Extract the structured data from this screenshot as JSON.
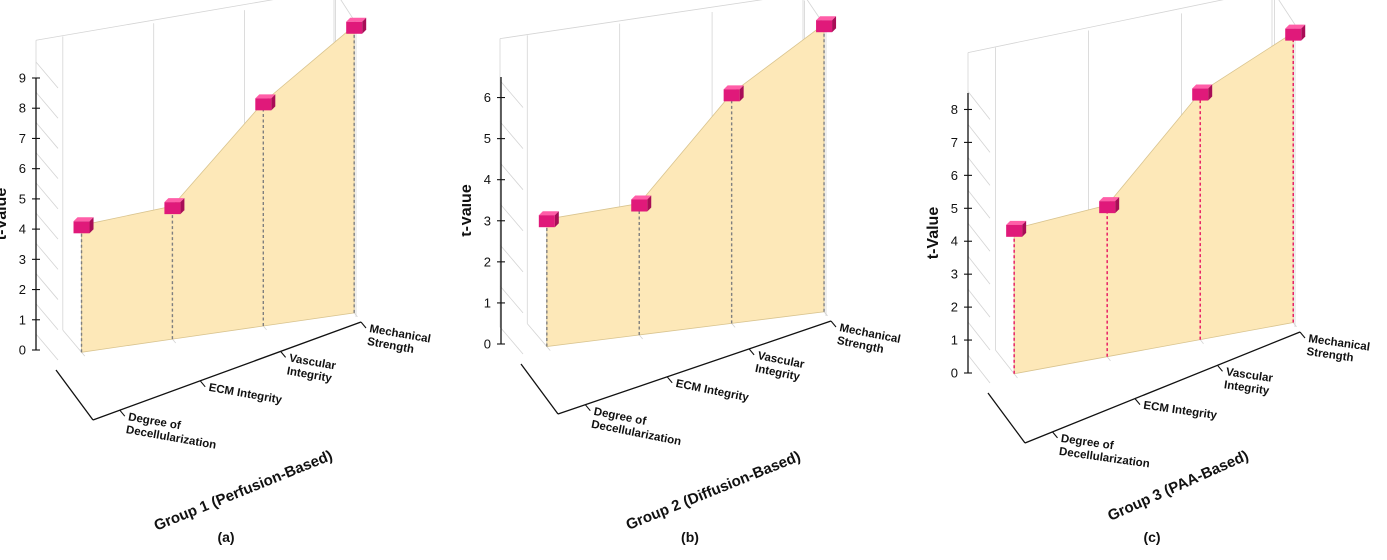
{
  "colors": {
    "area_fill": "#fde8b8",
    "marker_face": "#e0197a",
    "marker_top": "#ff5ea8",
    "marker_side": "#a80d57",
    "drop_gray": "#7f7f7f",
    "drop_red": "#e6105f"
  },
  "chart_data": [
    {
      "type": "area",
      "panel": "(a)",
      "title": "",
      "xlabel": "Group 1 (Perfusion-Based)",
      "ylabel": "t-Value",
      "categories": [
        "Degree of Decellularization",
        "ECM Integrity",
        "Vascular Integrity",
        "Mechanical Strength"
      ],
      "values": [
        4.2,
        4.4,
        7.4,
        9.5
      ],
      "ylim": [
        0,
        9
      ],
      "yticks": [
        0,
        1,
        2,
        3,
        4,
        5,
        6,
        7,
        8,
        9
      ],
      "drop_line_color": "gray",
      "grid": true
    },
    {
      "type": "area",
      "panel": "(b)",
      "title": "",
      "xlabel": "Group 2 (Diffusion-Based)",
      "ylabel": "t-Value",
      "categories": [
        "Degree of Decellularization",
        "ECM Integrity",
        "Vascular Integrity",
        "Mechanical Strength"
      ],
      "values": [
        3.1,
        3.2,
        5.6,
        7.0
      ],
      "ylim": [
        0,
        6.5
      ],
      "yticks": [
        0,
        1,
        2,
        3,
        4,
        5,
        6
      ],
      "drop_line_color": "gray",
      "grid": true
    },
    {
      "type": "area",
      "panel": "(c)",
      "title": "",
      "xlabel": "Group 3 (PAA-Based)",
      "ylabel": "t-Value",
      "categories": [
        "Degree of Decellularization",
        "ECM Integrity",
        "Vascular Integrity",
        "Mechanical Strength"
      ],
      "values": [
        4.4,
        4.6,
        7.5,
        8.8
      ],
      "ylim": [
        0,
        8.5
      ],
      "yticks": [
        0,
        1,
        2,
        3,
        4,
        5,
        6,
        7,
        8
      ],
      "drop_line_color": "red",
      "grid": true
    }
  ]
}
